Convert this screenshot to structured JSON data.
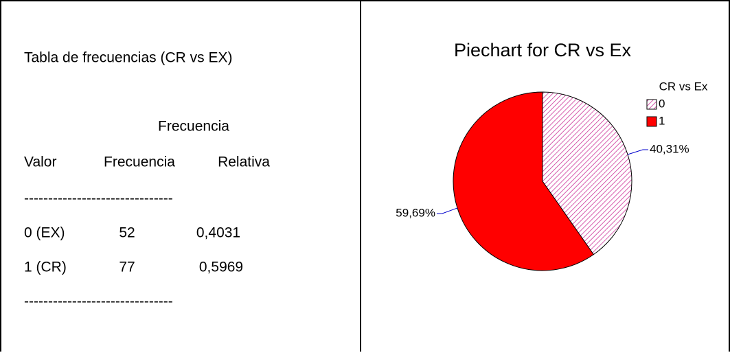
{
  "table": {
    "title": "Tabla de frecuencias (CR vs EX)",
    "header_top": "Frecuencia",
    "headers": [
      "Valor",
      "Frecuencia",
      "Relativa"
    ],
    "separator": "-------------------------------",
    "rows": [
      [
        "0 (EX)",
        "52",
        "0,4031"
      ],
      [
        "1 (CR)",
        "77",
        "0,5969"
      ]
    ]
  },
  "chart_data": {
    "type": "pie",
    "title": "Piechart for CR vs Ex",
    "legend_title": "CR vs Ex",
    "categories": [
      "0",
      "1"
    ],
    "values": [
      40.31,
      59.69
    ],
    "value_labels": [
      "40,31%",
      "59,69%"
    ],
    "colors": [
      "#cc3399",
      "#ff0000"
    ],
    "legend": "upper right"
  }
}
